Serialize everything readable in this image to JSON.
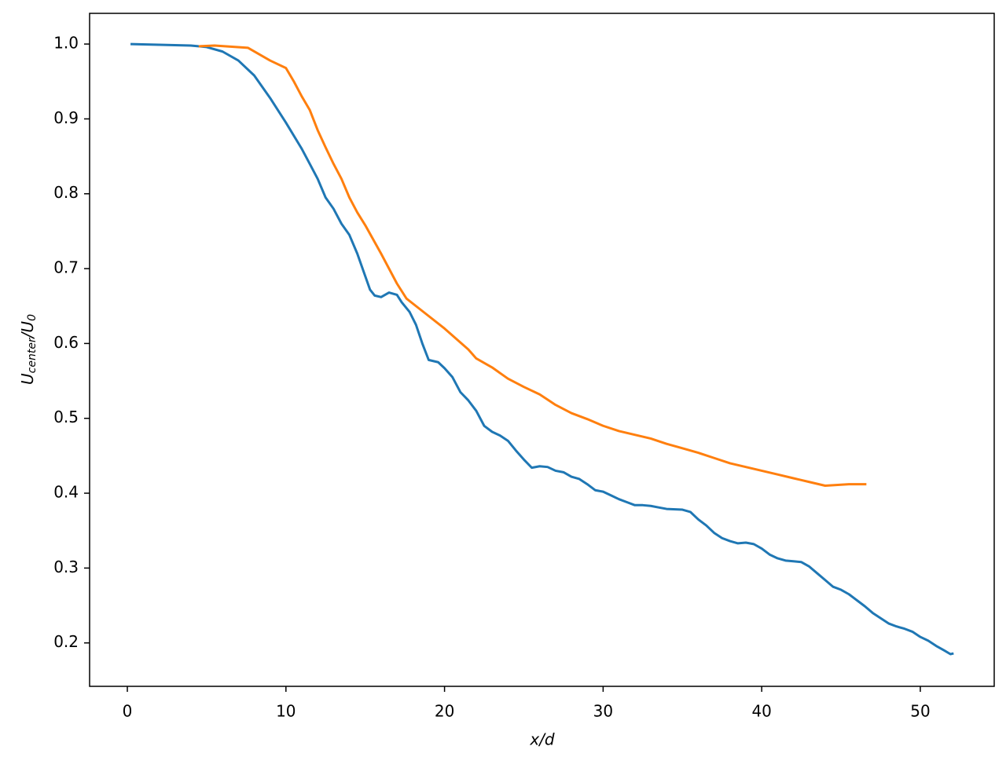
{
  "chart_data": {
    "type": "line",
    "xlabel": "x/d",
    "ylabel": [
      {
        "text": "U"
      },
      {
        "text": "center",
        "sub": true
      },
      {
        "text": "/U"
      },
      {
        "text": "0",
        "sub": true
      }
    ],
    "xlim": [
      -2.38,
      54.66
    ],
    "ylim": [
      0.142,
      1.041
    ],
    "xticks": [
      0,
      10,
      20,
      30,
      40,
      50
    ],
    "yticks": [
      {
        "value": 0.2,
        "label": "0.2"
      },
      {
        "value": 0.3,
        "label": "0.3"
      },
      {
        "value": 0.4,
        "label": "0.4"
      },
      {
        "value": 0.5,
        "label": "0.5"
      },
      {
        "value": 0.6,
        "label": "0.6"
      },
      {
        "value": 0.7,
        "label": "0.7"
      },
      {
        "value": 0.8,
        "label": "0.8"
      },
      {
        "value": 0.9,
        "label": "0.9"
      },
      {
        "value": 1.0,
        "label": "1.0"
      }
    ],
    "grid": false,
    "series": [
      {
        "color": "#1f77b4",
        "x": [
          0.2,
          2,
          4,
          5,
          6,
          7,
          8,
          9,
          10,
          11,
          11.5,
          12,
          12.5,
          13,
          13.5,
          14,
          14.5,
          15,
          15.3,
          15.6,
          16,
          16.5,
          17,
          17.3,
          17.8,
          18.2,
          18.6,
          19,
          19.6,
          20,
          20.5,
          21,
          21.5,
          22,
          22.5,
          23,
          23.5,
          24,
          24.5,
          25,
          25.5,
          26,
          26.5,
          27,
          27.5,
          28,
          28.5,
          29,
          29.5,
          30,
          30.5,
          31,
          31.5,
          32,
          32.5,
          33,
          33.5,
          34,
          35,
          35.5,
          36,
          36.5,
          37,
          37.5,
          38,
          38.5,
          39,
          39.5,
          40,
          40.5,
          41,
          41.5,
          42,
          42.5,
          43,
          43.5,
          44,
          44.5,
          45,
          45.5,
          46,
          46.5,
          47,
          47.5,
          48,
          48.5,
          49,
          49.5,
          50,
          50.5,
          51,
          51.5,
          51.9,
          52.1
        ],
        "values": [
          1.0,
          0.999,
          0.998,
          0.996,
          0.99,
          0.978,
          0.958,
          0.928,
          0.895,
          0.86,
          0.84,
          0.82,
          0.795,
          0.78,
          0.76,
          0.745,
          0.72,
          0.69,
          0.672,
          0.664,
          0.662,
          0.668,
          0.665,
          0.655,
          0.642,
          0.625,
          0.6,
          0.578,
          0.575,
          0.567,
          0.555,
          0.535,
          0.524,
          0.51,
          0.49,
          0.482,
          0.477,
          0.47,
          0.457,
          0.445,
          0.434,
          0.436,
          0.435,
          0.43,
          0.428,
          0.422,
          0.419,
          0.412,
          0.404,
          0.402,
          0.397,
          0.392,
          0.388,
          0.384,
          0.384,
          0.383,
          0.381,
          0.379,
          0.378,
          0.375,
          0.365,
          0.357,
          0.347,
          0.34,
          0.336,
          0.333,
          0.334,
          0.332,
          0.326,
          0.318,
          0.313,
          0.31,
          0.309,
          0.308,
          0.302,
          0.293,
          0.284,
          0.275,
          0.271,
          0.265,
          0.257,
          0.249,
          0.24,
          0.233,
          0.226,
          0.222,
          0.219,
          0.215,
          0.208,
          0.203,
          0.196,
          0.19,
          0.185,
          0.186
        ]
      },
      {
        "color": "#ff7f0e",
        "x": [
          4.5,
          5.5,
          7.6,
          9,
          10,
          10.5,
          11,
          11.5,
          12,
          12.5,
          13,
          13.5,
          14,
          14.5,
          15,
          16,
          17,
          17.6,
          18.5,
          20,
          21.5,
          22,
          23,
          24,
          25,
          26,
          27,
          28,
          29,
          30,
          31,
          32,
          33,
          34,
          35,
          36,
          37,
          38,
          39,
          40,
          41,
          42,
          43,
          44,
          45.5,
          46.6
        ],
        "values": [
          0.997,
          0.998,
          0.995,
          0.978,
          0.968,
          0.95,
          0.93,
          0.912,
          0.885,
          0.862,
          0.84,
          0.82,
          0.795,
          0.775,
          0.758,
          0.72,
          0.68,
          0.66,
          0.645,
          0.62,
          0.592,
          0.58,
          0.568,
          0.553,
          0.542,
          0.532,
          0.518,
          0.507,
          0.499,
          0.49,
          0.483,
          0.478,
          0.473,
          0.466,
          0.46,
          0.454,
          0.447,
          0.44,
          0.435,
          0.43,
          0.425,
          0.42,
          0.415,
          0.41,
          0.412,
          0.412
        ]
      }
    ]
  }
}
